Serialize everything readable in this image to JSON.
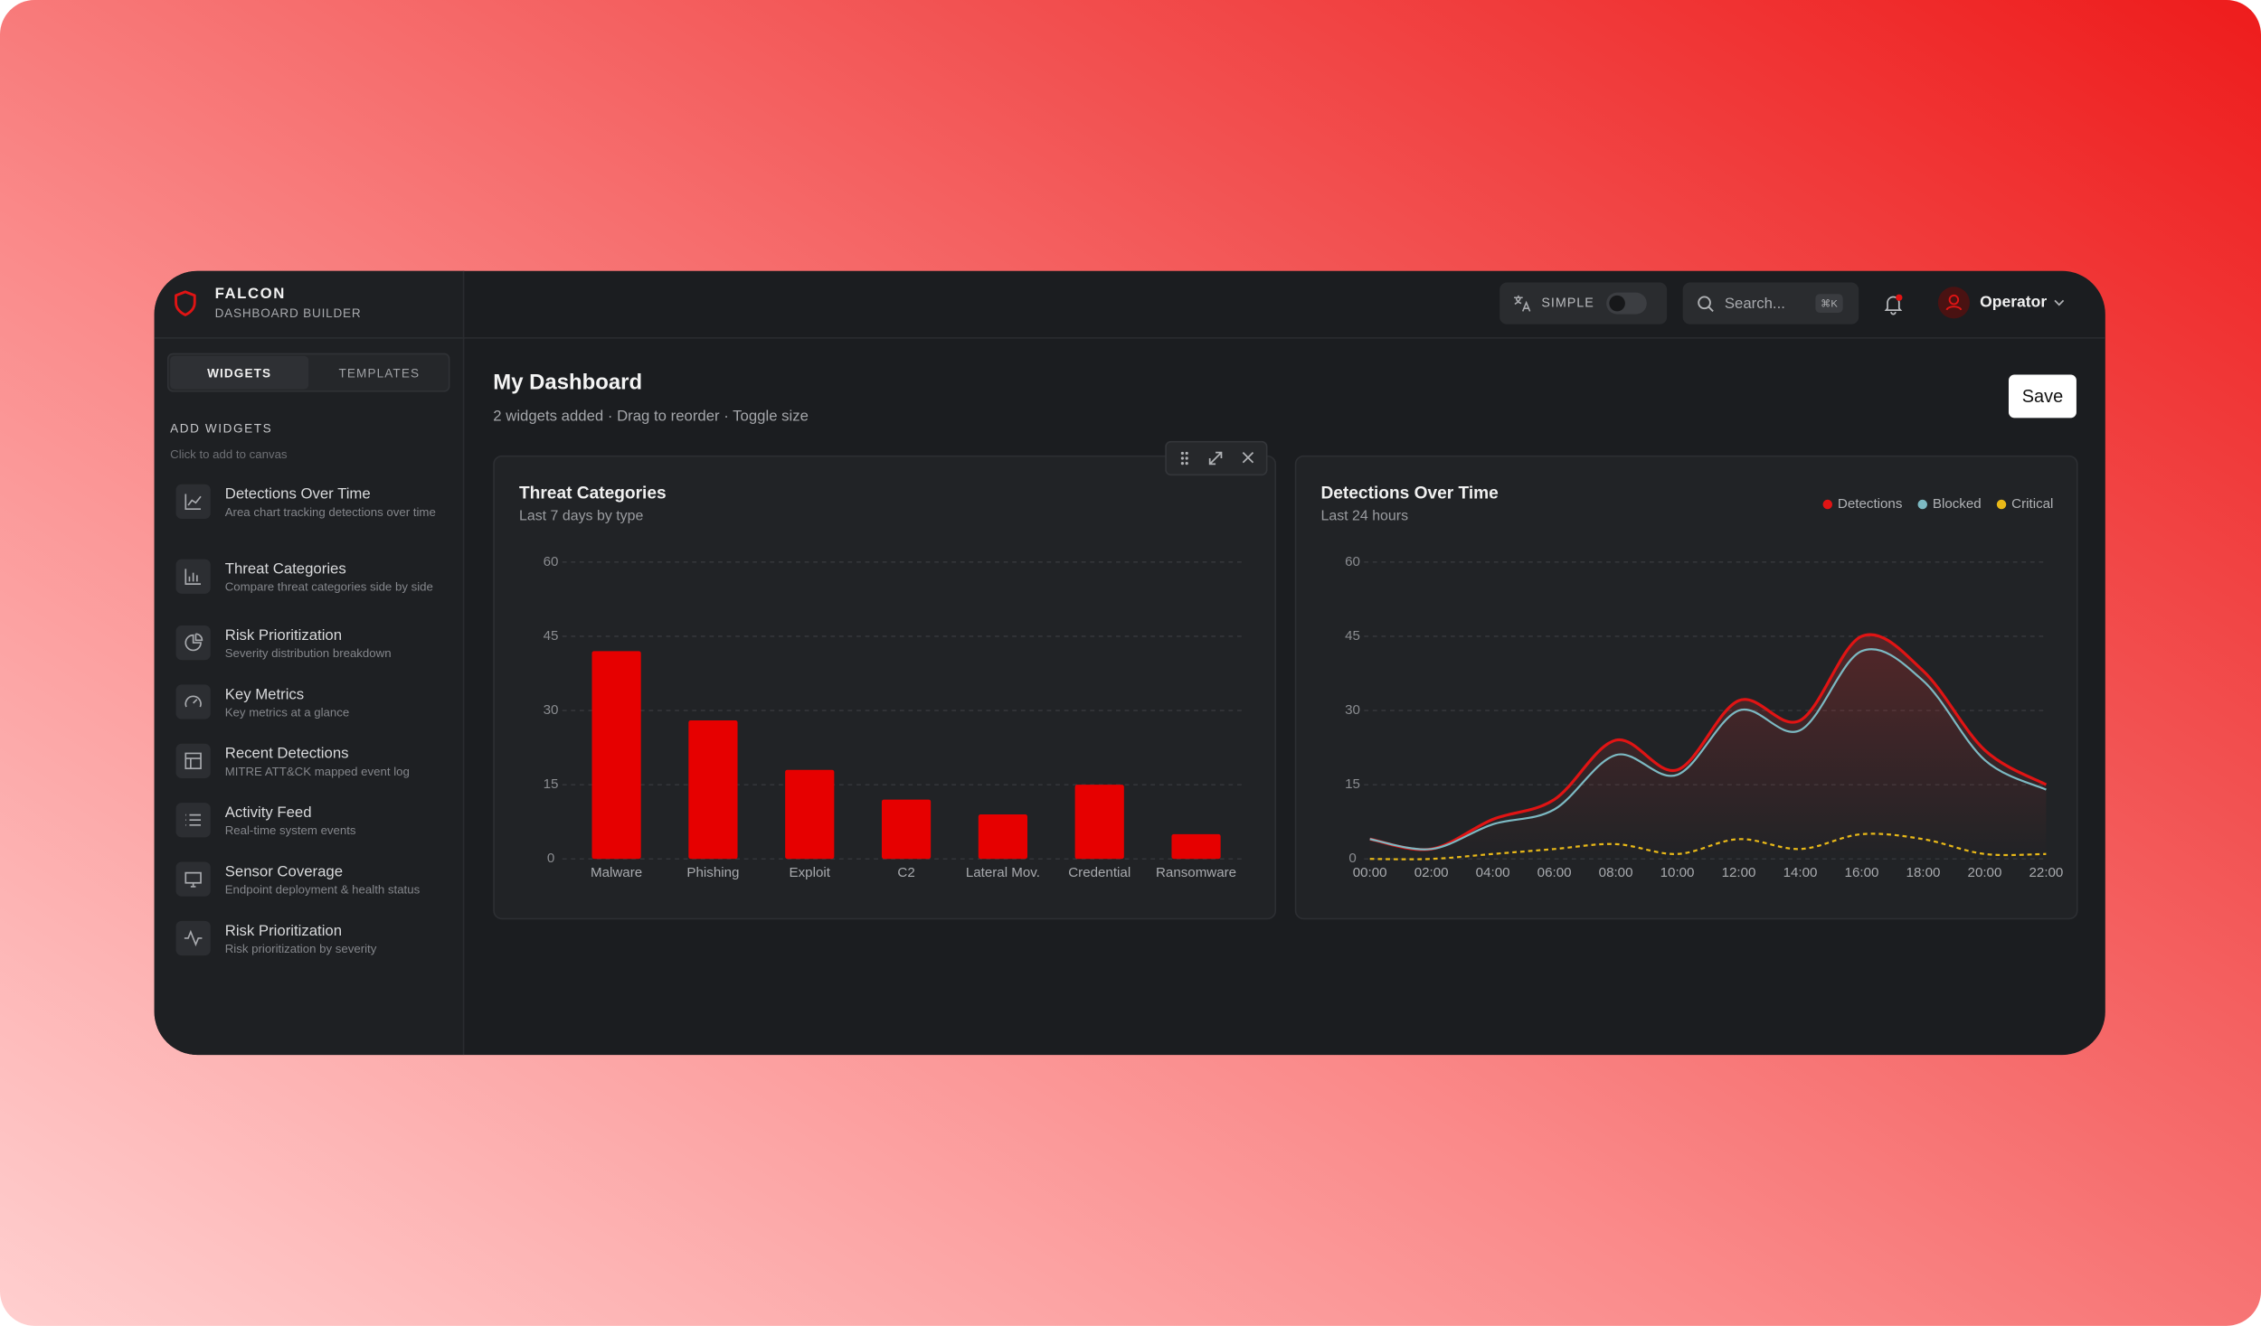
{
  "app": {
    "brand": "FALCON",
    "subtitle": "DASHBOARD BUILDER",
    "mode": "SIMPLE",
    "search": "Search...",
    "shortcut": "⌘K",
    "user": "Operator"
  },
  "sidebar": {
    "tabs": [
      "WIDGETS",
      "TEMPLATES"
    ],
    "heading": "ADD WIDGETS",
    "hint": "Click to add to canvas",
    "items": [
      {
        "title": "Detections Over Time",
        "description": "Area chart tracking detections over time"
      },
      {
        "title": "Threat Categories",
        "description": "Compare threat categories side by side"
      },
      {
        "title": "Risk Prioritization",
        "description": "Severity distribution breakdown"
      },
      {
        "title": "Key Metrics",
        "description": "Key metrics at a glance"
      },
      {
        "title": "Recent Detections",
        "description": "MITRE ATT&CK mapped event log"
      },
      {
        "title": "Activity Feed",
        "description": "Real-time system events"
      },
      {
        "title": "Sensor Coverage",
        "description": "Endpoint deployment & health status"
      },
      {
        "title": "Risk Prioritization",
        "description": "Risk prioritization by severity"
      }
    ]
  },
  "dashboard": {
    "title": "My Dashboard",
    "subtitle": "2 widgets added · Drag to reorder · Toggle size",
    "save": "Save"
  },
  "chart_data": [
    {
      "type": "bar",
      "title": "Threat Categories",
      "subtitle": "Last 7 days by type",
      "categories": [
        "Malware",
        "Phishing",
        "Exploit",
        "C2",
        "Lateral Mov.",
        "Credential",
        "Ransomware"
      ],
      "values": [
        42,
        28,
        18,
        12,
        9,
        15,
        5
      ],
      "color": "#e60000",
      "ylim": [
        0,
        60
      ],
      "yticks": [
        0,
        15,
        30,
        45,
        60
      ],
      "grid": true
    },
    {
      "type": "line",
      "title": "Detections Over Time",
      "subtitle": "Last 24 hours",
      "categories": [
        "00:00",
        "02:00",
        "04:00",
        "06:00",
        "08:00",
        "10:00",
        "12:00",
        "14:00",
        "16:00",
        "18:00",
        "20:00",
        "22:00"
      ],
      "series": [
        {
          "name": "Detections",
          "color": "#e01414",
          "values": [
            4,
            2,
            8,
            12,
            24,
            18,
            32,
            28,
            45,
            38,
            22,
            15
          ]
        },
        {
          "name": "Blocked",
          "color": "#7cb9c2",
          "values": [
            4,
            2,
            7,
            10,
            21,
            17,
            30,
            26,
            42,
            36,
            20,
            14
          ]
        },
        {
          "name": "Critical",
          "color": "#e8b818",
          "style": "dashed",
          "values": [
            0,
            0,
            1,
            2,
            3,
            1,
            4,
            2,
            5,
            4,
            1,
            1
          ]
        }
      ],
      "ylim": [
        0,
        60
      ],
      "yticks": [
        0,
        15,
        30,
        45,
        60
      ],
      "grid": true,
      "legend": "top-right"
    }
  ]
}
